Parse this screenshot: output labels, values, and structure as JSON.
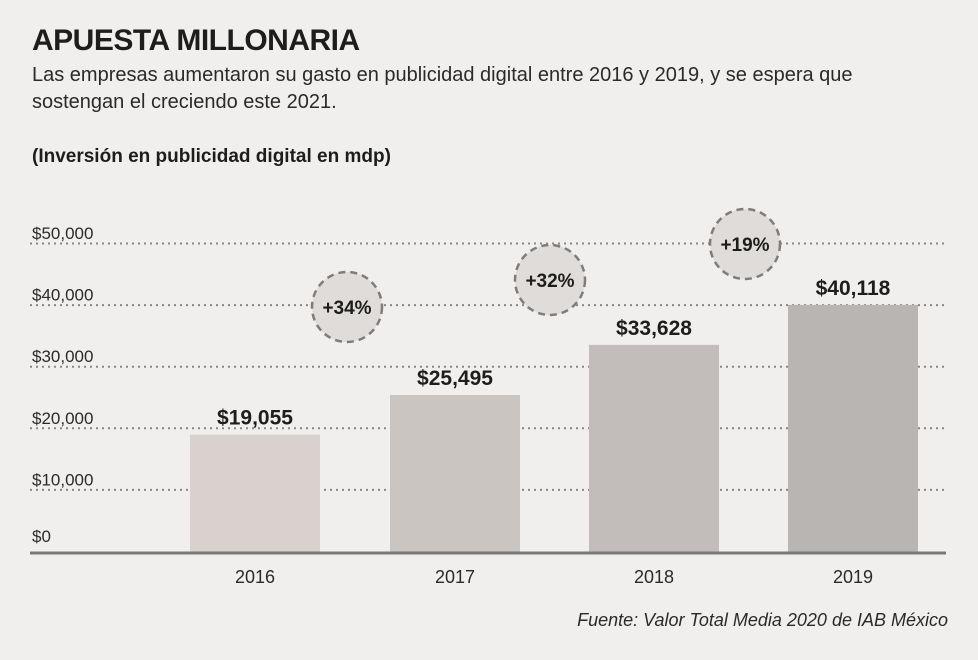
{
  "title": "APUESTA MILLONARIA",
  "subtitle": "Las empresas aumentaron su gasto en publicidad digital entre 2016 y 2019, y se espera que sostengan el creciendo este 2021.",
  "unit_label": "(Inversión en publicidad digital en mdp)",
  "source": "Fuente: Valor Total Media 2020 de IAB México",
  "colors": {
    "background": "#f1efee",
    "bars": [
      "#d8d1ce",
      "#cbc5c2",
      "#c2bdba",
      "#b9b5b3"
    ],
    "grid": "#8a8785",
    "axis": "#7a7876",
    "bubble_fill": "#e0dcda",
    "bubble_stroke": "#807c79"
  },
  "chart_data": {
    "type": "bar",
    "categories": [
      "2016",
      "2017",
      "2018",
      "2019"
    ],
    "values": [
      19055,
      25495,
      33628,
      40118
    ],
    "value_labels": [
      "$19,055",
      "$25,495",
      "$33,628",
      "$40,118"
    ],
    "y_ticks": [
      0,
      10000,
      20000,
      30000,
      40000,
      50000
    ],
    "y_tick_labels": [
      "$0",
      "$10,000",
      "$20,000",
      "$30,000",
      "$40,000",
      "$50,000"
    ],
    "ylim": [
      0,
      50000
    ],
    "grid": true,
    "growth_annotations": [
      {
        "between": [
          "2016",
          "2017"
        ],
        "label": "+34%"
      },
      {
        "between": [
          "2017",
          "2018"
        ],
        "label": "+32%"
      },
      {
        "between": [
          "2018",
          "2019"
        ],
        "label": "+19%"
      }
    ]
  }
}
